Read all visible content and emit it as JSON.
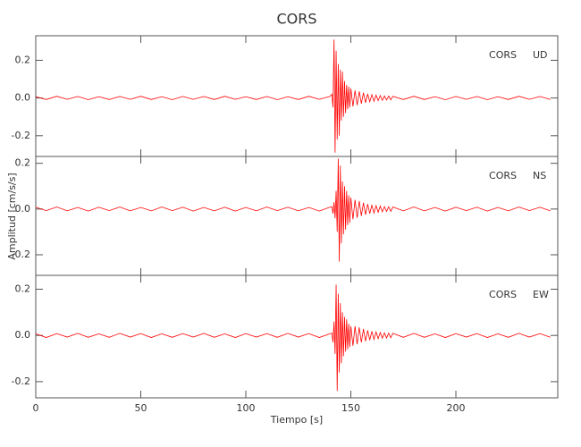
{
  "title": "CORS",
  "xlabel": "Tiempo [s]",
  "ylabel": "Amplitud [cm/s/s]",
  "chart_data": [
    {
      "type": "line",
      "station": "CORS",
      "component": "UD",
      "color": "#ff0000",
      "xlim": [
        0,
        248.5
      ],
      "xticks": [
        0,
        50,
        100,
        150,
        200
      ],
      "ylim": [
        -0.31,
        0.33
      ],
      "yticks": [
        0.2,
        {
          "value": 0,
          "label": "0.0"
        },
        -0.2
      ],
      "x": [
        0,
        5,
        10,
        15,
        20,
        25,
        30,
        35,
        40,
        45,
        50,
        55,
        60,
        65,
        70,
        75,
        80,
        85,
        90,
        95,
        100,
        105,
        110,
        115,
        120,
        125,
        130,
        135,
        140,
        141,
        141.5,
        142,
        142.5,
        143,
        143.5,
        144,
        144.5,
        145,
        145.5,
        146,
        146.5,
        147,
        147.5,
        148,
        148.5,
        149,
        149.5,
        150,
        151,
        152,
        153,
        154,
        155,
        156,
        157,
        158,
        159,
        160,
        161,
        162,
        163,
        164,
        165,
        166,
        167,
        168,
        169,
        170,
        175,
        180,
        185,
        190,
        195,
        200,
        205,
        210,
        215,
        220,
        225,
        230,
        235,
        240,
        245
      ],
      "values": [
        0.007,
        -0.008,
        0.009,
        -0.007,
        0.008,
        -0.009,
        0.007,
        -0.008,
        0.008,
        -0.007,
        0.009,
        -0.008,
        0.007,
        -0.009,
        0.008,
        -0.007,
        0.008,
        -0.008,
        0.009,
        -0.007,
        0.007,
        -0.008,
        0.008,
        -0.009,
        0.007,
        -0.008,
        0.009,
        -0.007,
        0.008,
        0.02,
        -0.05,
        0.31,
        -0.29,
        0.25,
        -0.22,
        0.18,
        -0.2,
        0.15,
        -0.12,
        0.14,
        -0.1,
        0.09,
        -0.08,
        0.07,
        -0.06,
        0.06,
        -0.05,
        0.05,
        -0.045,
        0.04,
        -0.038,
        0.035,
        -0.03,
        0.028,
        -0.025,
        0.022,
        -0.02,
        0.018,
        -0.017,
        0.015,
        -0.014,
        0.013,
        -0.012,
        0.011,
        -0.011,
        0.01,
        -0.01,
        0.009,
        -0.008,
        0.009,
        -0.008,
        0.007,
        -0.009,
        0.008,
        -0.007,
        0.008,
        -0.009,
        0.007,
        -0.008,
        0.009,
        -0.007,
        0.008,
        -0.008
      ]
    },
    {
      "type": "line",
      "station": "CORS",
      "component": "NS",
      "color": "#ff0000",
      "xlim": [
        0,
        248.5
      ],
      "xticks": [
        0,
        50,
        100,
        150,
        200
      ],
      "ylim": [
        -0.29,
        0.23
      ],
      "yticks": [
        0.2,
        {
          "value": 0,
          "label": "0.0"
        },
        -0.2
      ],
      "x": [
        0,
        5,
        10,
        15,
        20,
        25,
        30,
        35,
        40,
        45,
        50,
        55,
        60,
        65,
        70,
        75,
        80,
        85,
        90,
        95,
        100,
        105,
        110,
        115,
        120,
        125,
        130,
        135,
        140,
        141,
        141.5,
        142,
        142.5,
        143,
        143.5,
        144,
        144.5,
        145,
        145.5,
        146,
        146.5,
        147,
        147.5,
        148,
        148.5,
        149,
        149.5,
        150,
        151,
        152,
        153,
        154,
        155,
        156,
        157,
        158,
        159,
        160,
        161,
        162,
        163,
        164,
        165,
        166,
        167,
        168,
        169,
        170,
        175,
        180,
        185,
        190,
        195,
        200,
        205,
        210,
        215,
        220,
        225,
        230,
        235,
        240,
        245
      ],
      "values": [
        0.008,
        -0.007,
        0.009,
        -0.008,
        0.007,
        -0.009,
        0.008,
        -0.007,
        0.009,
        -0.008,
        0.007,
        -0.008,
        0.009,
        -0.007,
        0.008,
        -0.009,
        0.007,
        -0.008,
        0.008,
        -0.009,
        0.007,
        -0.008,
        0.009,
        -0.007,
        0.008,
        -0.008,
        0.007,
        -0.009,
        0.008,
        0.01,
        -0.02,
        0.03,
        -0.04,
        0.08,
        -0.1,
        0.22,
        -0.23,
        0.19,
        -0.15,
        0.12,
        -0.11,
        0.1,
        -0.09,
        0.08,
        -0.07,
        0.06,
        -0.06,
        0.05,
        -0.045,
        0.04,
        -0.038,
        0.035,
        -0.03,
        0.028,
        -0.025,
        0.022,
        -0.02,
        0.018,
        -0.017,
        0.015,
        -0.014,
        0.013,
        -0.012,
        0.011,
        -0.011,
        0.01,
        -0.01,
        0.009,
        -0.008,
        0.009,
        -0.008,
        0.007,
        -0.009,
        0.008,
        -0.007,
        0.008,
        -0.009,
        0.007,
        -0.008,
        0.009,
        -0.007,
        0.008,
        -0.008
      ]
    },
    {
      "type": "line",
      "station": "CORS",
      "component": "EW",
      "color": "#ff0000",
      "xlim": [
        0,
        248.5
      ],
      "xticks": [
        0,
        50,
        100,
        150,
        200
      ],
      "ylim": [
        -0.27,
        0.26
      ],
      "yticks": [
        0.2,
        {
          "value": 0,
          "label": "0.0"
        },
        -0.2
      ],
      "x": [
        0,
        5,
        10,
        15,
        20,
        25,
        30,
        35,
        40,
        45,
        50,
        55,
        60,
        65,
        70,
        75,
        80,
        85,
        90,
        95,
        100,
        105,
        110,
        115,
        120,
        125,
        130,
        135,
        140,
        141,
        141.5,
        142,
        142.5,
        143,
        143.5,
        144,
        144.5,
        145,
        145.5,
        146,
        146.5,
        147,
        147.5,
        148,
        148.5,
        149,
        149.5,
        150,
        151,
        152,
        153,
        154,
        155,
        156,
        157,
        158,
        159,
        160,
        161,
        162,
        163,
        164,
        165,
        166,
        167,
        168,
        169,
        170,
        175,
        180,
        185,
        190,
        195,
        200,
        205,
        210,
        215,
        220,
        225,
        230,
        235,
        240,
        245
      ],
      "values": [
        0.007,
        -0.009,
        0.008,
        -0.007,
        0.009,
        -0.008,
        0.007,
        -0.008,
        0.009,
        -0.007,
        0.008,
        -0.009,
        0.007,
        -0.008,
        0.008,
        -0.007,
        0.009,
        -0.008,
        0.007,
        -0.009,
        0.008,
        -0.007,
        0.008,
        -0.008,
        0.009,
        -0.007,
        0.008,
        -0.009,
        0.007,
        0.01,
        -0.03,
        0.06,
        -0.08,
        0.22,
        -0.24,
        0.18,
        -0.16,
        0.14,
        -0.12,
        0.1,
        -0.09,
        0.08,
        -0.07,
        0.07,
        -0.06,
        0.05,
        -0.05,
        0.04,
        -0.045,
        0.04,
        -0.038,
        0.035,
        -0.03,
        0.028,
        -0.025,
        0.022,
        -0.02,
        0.018,
        -0.017,
        0.015,
        -0.014,
        0.013,
        -0.012,
        0.011,
        -0.011,
        0.01,
        -0.01,
        0.009,
        -0.008,
        0.009,
        -0.008,
        0.007,
        -0.009,
        0.008,
        -0.007,
        0.008,
        -0.009,
        0.007,
        -0.008,
        0.009,
        -0.007,
        0.008,
        -0.008
      ]
    }
  ]
}
